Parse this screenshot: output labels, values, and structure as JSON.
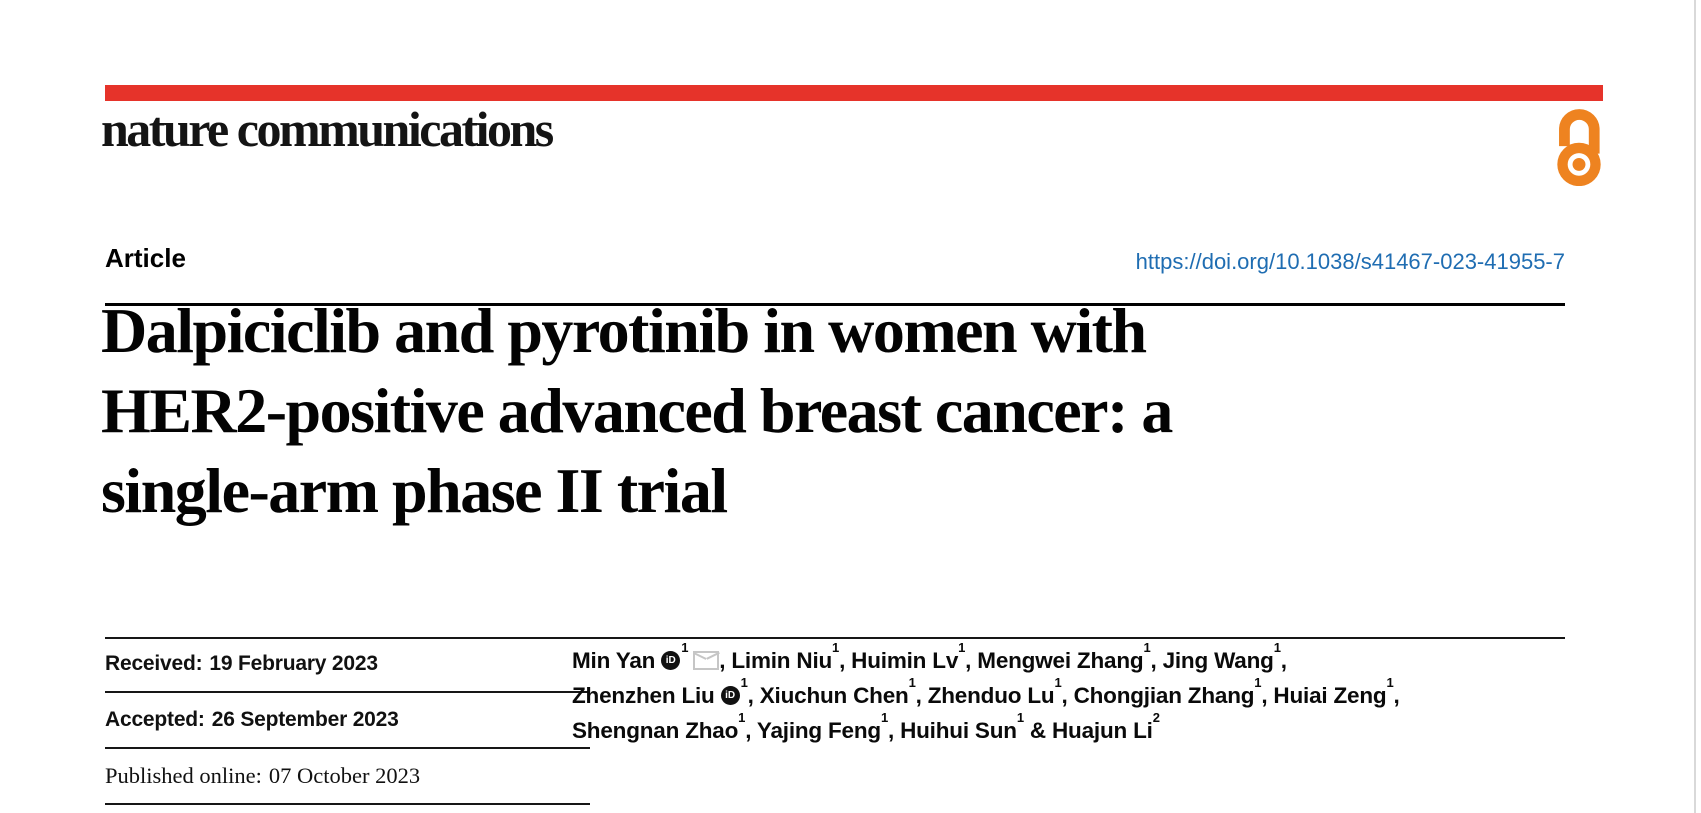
{
  "masthead": {
    "logo_text": "nature communications",
    "brand_bar_color": "#e6332a",
    "open_access_color": "#ee8320"
  },
  "article_header": {
    "kicker": "Article",
    "doi_link": "https://doi.org/10.1038/s41467-023-41955-7",
    "doi_color": "#1f6db2",
    "title": "Dalpiciclib and pyrotinib in women with\nHER2-positive advanced breast cancer: a\nsingle-arm phase II trial"
  },
  "dates": [
    {
      "label": "Received:",
      "value": "19 February 2023"
    },
    {
      "label": "Accepted:",
      "value": "26 September 2023"
    },
    {
      "label": "Published online:",
      "value": "07 October 2023"
    }
  ],
  "authors": {
    "lines": [
      [
        {
          "text": "Min Yan"
        },
        {
          "icon": "orcid"
        },
        {
          "sup": "1"
        },
        {
          "icon": "email"
        },
        {
          "text": ", Limin Niu"
        },
        {
          "sup": "1"
        },
        {
          "text": ", Huimin Lv"
        },
        {
          "sup": "1"
        },
        {
          "text": ", Mengwei Zhang"
        },
        {
          "sup": "1"
        },
        {
          "text": ", Jing Wang"
        },
        {
          "sup": "1"
        },
        {
          "text": ","
        }
      ],
      [
        {
          "text": "Zhenzhen Liu"
        },
        {
          "icon": "orcid"
        },
        {
          "sup": "1"
        },
        {
          "text": ", Xiuchun Chen"
        },
        {
          "sup": "1"
        },
        {
          "text": ", Zhenduo Lu"
        },
        {
          "sup": "1"
        },
        {
          "text": ", Chongjian Zhang"
        },
        {
          "sup": "1"
        },
        {
          "text": ", Huiai Zeng"
        },
        {
          "sup": "1"
        },
        {
          "text": ","
        }
      ],
      [
        {
          "text": "Shengnan Zhao"
        },
        {
          "sup": "1"
        },
        {
          "text": ", Yajing Feng"
        },
        {
          "sup": "1"
        },
        {
          "text": ", Huihui Sun"
        },
        {
          "sup": "1"
        },
        {
          "text": " & Huajun Li"
        },
        {
          "sup": "2"
        }
      ]
    ]
  }
}
